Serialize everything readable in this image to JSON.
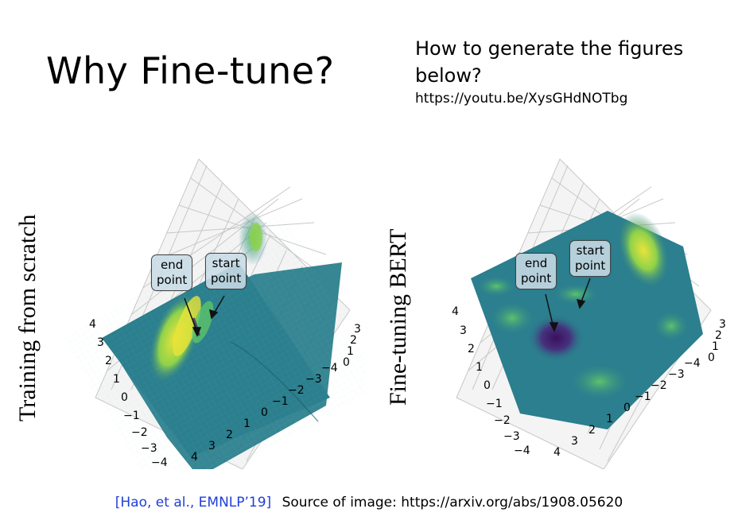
{
  "slide": {
    "title": "Why Fine-tune?",
    "note_question": "How to generate the figures below?",
    "note_url": "https://youtu.be/XysGHdNOTbg"
  },
  "figures": [
    {
      "ylabel": "Training from scratch",
      "callout_end": "end point",
      "callout_start": "start point",
      "axis_left_ticks": [
        "4",
        "3",
        "2",
        "1",
        "0",
        "−1",
        "−2",
        "−3",
        "−4"
      ],
      "axis_bottom_ticks": [
        "4",
        "3",
        "2",
        "1",
        "0",
        "−1",
        "−2",
        "−3",
        "−4"
      ],
      "axis_z_ticks": [
        "3",
        "2",
        "1",
        "0"
      ]
    },
    {
      "ylabel": "Fine-tuning BERT",
      "callout_end": "end point",
      "callout_start": "start point",
      "axis_left_ticks": [
        "4",
        "3",
        "2",
        "1",
        "0",
        "−1",
        "−2",
        "−3",
        "−4"
      ],
      "axis_bottom_ticks": [
        "4",
        "3",
        "2",
        "1",
        "0",
        "−1",
        "−2",
        "−3",
        "−4"
      ],
      "axis_z_ticks": [
        "3",
        "2",
        "1",
        "0"
      ]
    }
  ],
  "footer": {
    "citation": "[Hao, et al., EMNLP’19]",
    "source": "Source of image: https://arxiv.org/abs/1908.05620"
  },
  "colors": {
    "surface_base": "#2b7f8e",
    "surface_high": "#e8e43a",
    "surface_mid": "#5cc46a",
    "surface_low": "#3b0f5e",
    "citation": "#1f3fd8"
  }
}
